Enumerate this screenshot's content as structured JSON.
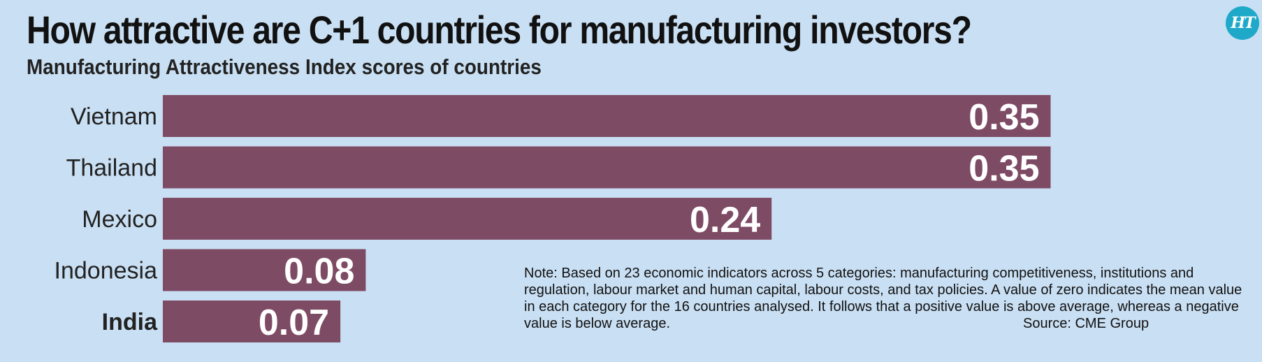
{
  "header": {
    "title": "How attractive are C+1 countries for manufacturing investors?",
    "subtitle": "Manufacturing Attractiveness Index scores of countries",
    "logo_text": "HT"
  },
  "chart_data": {
    "type": "bar",
    "orientation": "horizontal",
    "categories": [
      "Vietnam",
      "Thailand",
      "Mexico",
      "Indonesia",
      "India"
    ],
    "values": [
      0.35,
      0.35,
      0.24,
      0.08,
      0.07
    ],
    "value_labels": [
      "0.35",
      "0.35",
      "0.24",
      "0.08",
      "0.07"
    ],
    "highlight": "India",
    "bar_color": "#7e4b65",
    "title": "How attractive are C+1 countries for manufacturing investors?",
    "subtitle": "Manufacturing Attractiveness Index scores of countries",
    "grid": false,
    "legend": "none"
  },
  "note": {
    "text": "Note: Based on 23 economic indicators across 5 categories: manufacturing competitiveness, institutions and regulation, labour market and human capital, labour costs, and tax policies. A value of zero indicates the mean value in each category for the 16 countries analysed. It follows that a positive value is above average, whereas a negative value is below average.",
    "source": "Source: CME Group"
  },
  "colors": {
    "background": "#c9dff3",
    "bar": "#7e4b65",
    "logo": "#1fa9c9"
  }
}
